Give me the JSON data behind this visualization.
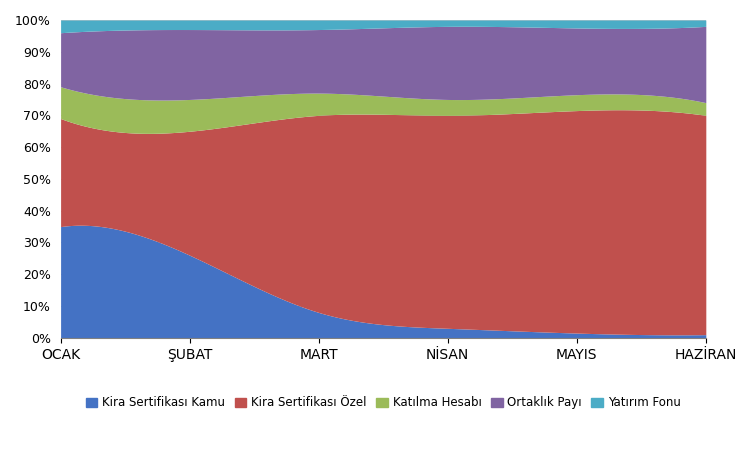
{
  "categories": [
    "OCAK",
    "ŞUBAT",
    "MART",
    "NİSAN",
    "MAYIS",
    "HAZİRAN"
  ],
  "series": {
    "Kira Sertifikası Kamu": [
      35.0,
      26.0,
      8.0,
      3.0,
      1.5,
      1.0
    ],
    "Kira Sertifikası Özel": [
      34.0,
      39.0,
      62.0,
      67.0,
      70.0,
      69.0
    ],
    "Katılma Hesabı": [
      10.0,
      10.0,
      7.0,
      5.0,
      5.0,
      4.0
    ],
    "Ortaklık Payı": [
      17.0,
      22.0,
      20.0,
      23.0,
      21.0,
      24.0
    ],
    "Yatırım Fonu": [
      4.0,
      3.0,
      3.0,
      2.0,
      2.5,
      2.0
    ]
  },
  "colors": {
    "Kira Sertifikası Kamu": "#4472c4",
    "Kira Sertifikası Özel": "#c0504d",
    "Katılma Hesabı": "#9bbb59",
    "Ortaklık Payı": "#8064a2",
    "Yatırım Fonu": "#4bacc6"
  },
  "legend_order": [
    "Kira Sertifikası Kamu",
    "Kira Sertifikası Özel",
    "Katılma Hesabı",
    "Ortaklık Payı",
    "Yatırım Fonu"
  ],
  "background_color": "#ffffff"
}
